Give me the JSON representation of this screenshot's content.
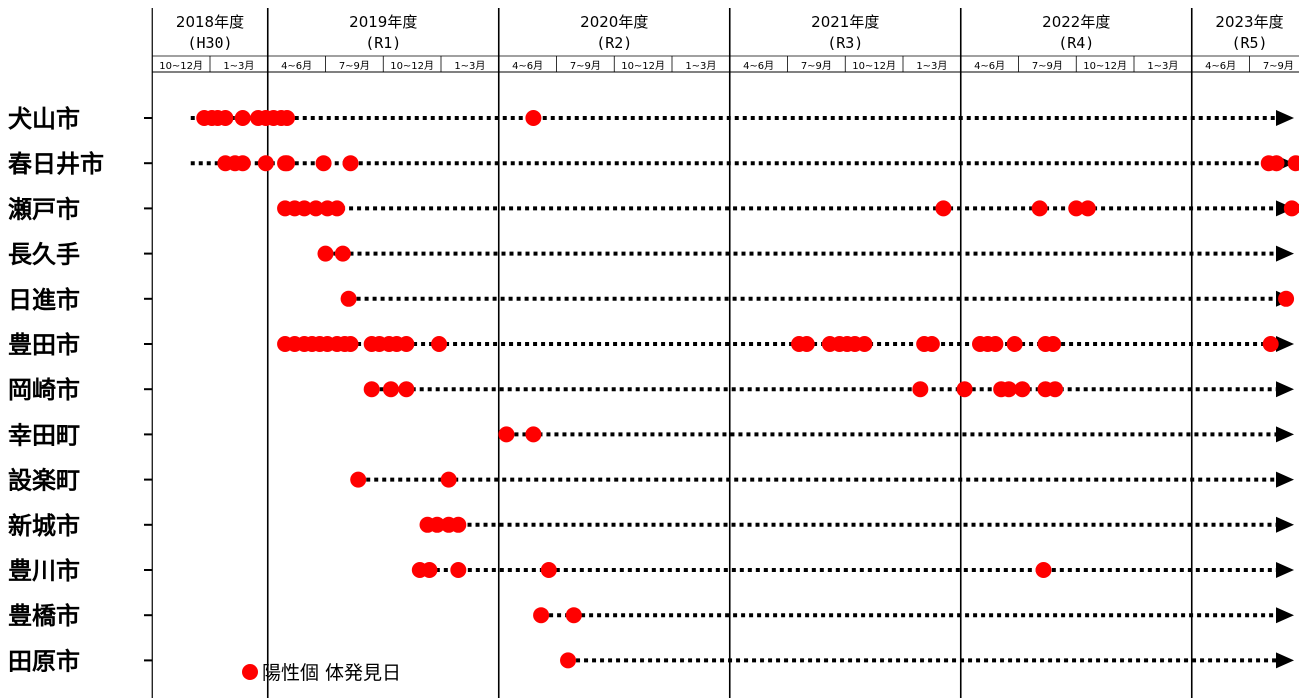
{
  "chart_data": {
    "type": "scatter",
    "years": [
      {
        "year": "2018年度",
        "era": "(H30)",
        "quarters": [
          "10~12月",
          "1~3月"
        ]
      },
      {
        "year": "2019年度",
        "era": "(R1)",
        "quarters": [
          "4~6月",
          "7~9月",
          "10~12月",
          "1~3月"
        ]
      },
      {
        "year": "2020年度",
        "era": "(R2)",
        "quarters": [
          "4~6月",
          "7~9月",
          "10~12月",
          "1~3月"
        ]
      },
      {
        "year": "2021年度",
        "era": "(R3)",
        "quarters": [
          "4~6月",
          "7~9月",
          "10~12月",
          "1~3月"
        ]
      },
      {
        "year": "2022年度",
        "era": "(R4)",
        "quarters": [
          "4~6月",
          "7~9月",
          "10~12月",
          "1~3月"
        ]
      },
      {
        "year": "2023年度",
        "era": "(R5)",
        "quarters": [
          "4~6月",
          "7~9月"
        ]
      }
    ],
    "x_unit": "months since 2018-09-01 (timeline runs from Sep 2018 to end of Sep 2023)",
    "xlim": [
      1,
      61
    ],
    "legend": {
      "label": "陽性個 体発見日",
      "marker_color": "#ff0000"
    },
    "series": [
      {
        "name": "犬山市",
        "line_start": 3.0,
        "detections": [
          3.7,
          4.1,
          4.4,
          4.8,
          5.7,
          6.5,
          6.9,
          7.3,
          7.7,
          8.0,
          20.8
        ]
      },
      {
        "name": "春日井市",
        "line_start": 3.0,
        "detections": [
          4.8,
          5.3,
          5.7,
          6.9,
          7.9,
          8.0,
          9.9,
          11.3,
          59.0,
          59.4,
          60.4
        ]
      },
      {
        "name": "瀬戸市",
        "line_start": 7.9,
        "detections": [
          7.9,
          8.4,
          8.9,
          9.5,
          10.1,
          10.6,
          42.1,
          47.1,
          49.0,
          49.6,
          60.2,
          60.9
        ]
      },
      {
        "name": "長久手",
        "line_start": 10.0,
        "detections": [
          10.0,
          10.9
        ]
      },
      {
        "name": "日進市",
        "line_start": 11.2,
        "detections": [
          11.2,
          59.9
        ]
      },
      {
        "name": "豊田市",
        "line_start": 7.9,
        "detections": [
          7.9,
          8.4,
          8.9,
          9.3,
          9.7,
          10.1,
          10.6,
          11.0,
          11.3,
          12.4,
          12.8,
          13.3,
          13.7,
          14.2,
          15.9,
          34.6,
          35.0,
          36.2,
          36.7,
          37.1,
          37.5,
          38.0,
          41.1,
          41.5,
          44.0,
          44.4,
          44.8,
          45.8,
          47.4,
          47.8,
          59.1
        ]
      },
      {
        "name": "岡崎市",
        "line_start": 12.4,
        "detections": [
          12.4,
          13.4,
          14.2,
          40.9,
          43.2,
          45.1,
          45.5,
          46.2,
          47.4,
          47.9
        ]
      },
      {
        "name": "幸田町",
        "line_start": 19.4,
        "detections": [
          19.4,
          20.8
        ]
      },
      {
        "name": "設楽町",
        "line_start": 11.7,
        "detections": [
          11.7,
          16.4
        ]
      },
      {
        "name": "新城市",
        "line_start": 15.3,
        "detections": [
          15.3,
          15.8,
          16.4,
          16.9
        ]
      },
      {
        "name": "豊川市",
        "line_start": 14.9,
        "detections": [
          14.9,
          15.4,
          16.9,
          21.6,
          47.3
        ]
      },
      {
        "name": "豊橋市",
        "line_start": 21.2,
        "detections": [
          21.2,
          22.9
        ]
      },
      {
        "name": "田原市",
        "line_start": 22.6,
        "detections": [
          22.6
        ]
      }
    ]
  }
}
